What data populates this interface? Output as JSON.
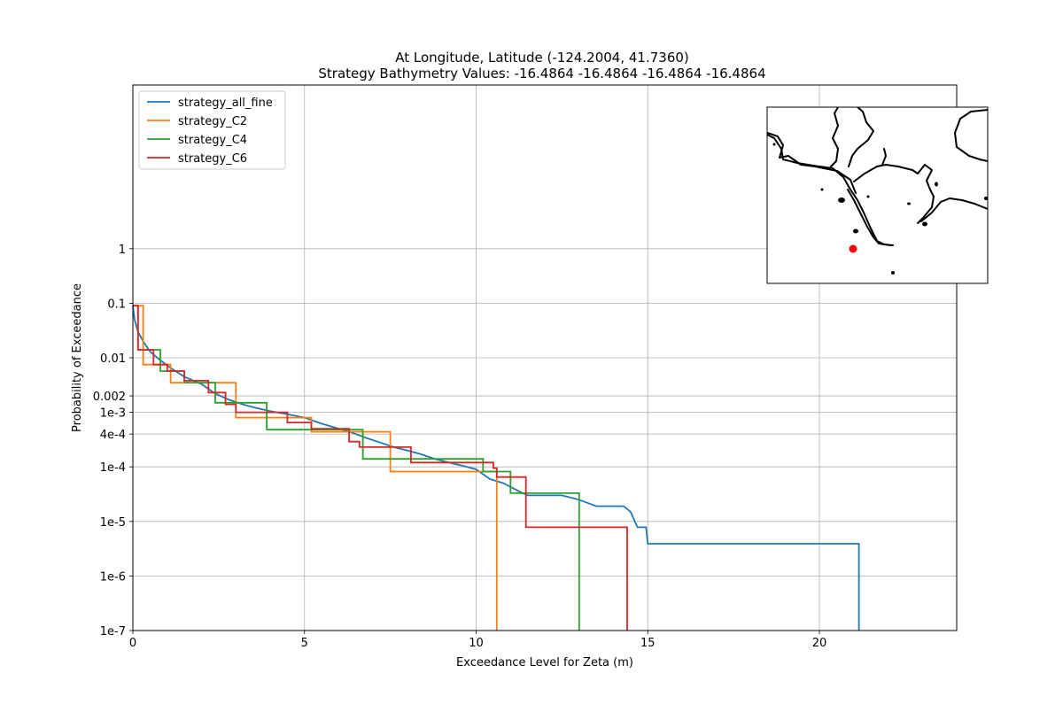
{
  "chart_data": {
    "type": "line",
    "title": "At Longitude, Latitude (-124.2004,  41.7360)",
    "subtitle": "Strategy Bathymetry Values:  -16.4864  -16.4864  -16.4864  -16.4864",
    "xlabel": "Exceedance Level for Zeta (m)",
    "ylabel": "Probability of Exceedance",
    "xlim": [
      0,
      24
    ],
    "ylim": [
      1e-07,
      1000
    ],
    "yscale": "log",
    "grid": true,
    "legend_position": "upper-left",
    "x_ticks": [
      {
        "value": 0,
        "label": "0"
      },
      {
        "value": 5,
        "label": "5"
      },
      {
        "value": 10,
        "label": "10"
      },
      {
        "value": 15,
        "label": "15"
      },
      {
        "value": 20,
        "label": "20"
      }
    ],
    "y_ticks": [
      {
        "value": 1,
        "label": "1"
      },
      {
        "value": 0.1,
        "label": "0.1"
      },
      {
        "value": 0.01,
        "label": "0.01"
      },
      {
        "value": 0.002,
        "label": "0.002"
      },
      {
        "value": 0.001,
        "label": "1e-3"
      },
      {
        "value": 0.0004,
        "label": "4e-4"
      },
      {
        "value": 0.0001,
        "label": "1e-4"
      },
      {
        "value": 1e-05,
        "label": "1e-5"
      },
      {
        "value": 1e-06,
        "label": "1e-6"
      },
      {
        "value": 1e-07,
        "label": "1e-7"
      }
    ],
    "series": [
      {
        "name": "strategy_all_fine",
        "color": "#1f77b4",
        "step": false,
        "points": [
          [
            0,
            0.09
          ],
          [
            0.05,
            0.05
          ],
          [
            0.15,
            0.03
          ],
          [
            0.3,
            0.02
          ],
          [
            0.5,
            0.013
          ],
          [
            0.8,
            0.009
          ],
          [
            1.1,
            0.0065
          ],
          [
            1.5,
            0.0045
          ],
          [
            2.0,
            0.0033
          ],
          [
            2.4,
            0.0022
          ],
          [
            2.8,
            0.0017
          ],
          [
            3.2,
            0.0014
          ],
          [
            3.6,
            0.0012
          ],
          [
            4.0,
            0.00105
          ],
          [
            4.5,
            0.00092
          ],
          [
            5.0,
            0.0008
          ],
          [
            5.5,
            0.00062
          ],
          [
            6.0,
            0.0005
          ],
          [
            6.4,
            0.00042
          ],
          [
            6.8,
            0.00034
          ],
          [
            7.2,
            0.00028
          ],
          [
            7.6,
            0.00023
          ],
          [
            8.0,
            0.0002
          ],
          [
            8.4,
            0.00017
          ],
          [
            8.8,
            0.00014
          ],
          [
            9.2,
            0.00012
          ],
          [
            9.6,
            0.000105
          ],
          [
            10.0,
            9e-05
          ],
          [
            10.4,
            6e-05
          ],
          [
            10.8,
            5e-05
          ],
          [
            11.2,
            3.7e-05
          ],
          [
            11.5,
            3e-05
          ],
          [
            12.5,
            3e-05
          ],
          [
            13.0,
            2.5e-05
          ],
          [
            13.5,
            1.9e-05
          ],
          [
            14.3,
            1.9e-05
          ],
          [
            14.5,
            1.5e-05
          ],
          [
            14.7,
            7.8e-06
          ],
          [
            14.95,
            7.8e-06
          ],
          [
            15.0,
            3.9e-06
          ],
          [
            21.15,
            3.9e-06
          ],
          [
            21.15,
            1e-07
          ]
        ]
      },
      {
        "name": "strategy_C2",
        "color": "#ff7f0e",
        "step": true,
        "points": [
          [
            0,
            0.09
          ],
          [
            0.3,
            0.09
          ],
          [
            0.3,
            0.0075
          ],
          [
            1.1,
            0.0075
          ],
          [
            1.1,
            0.0035
          ],
          [
            3.0,
            0.0035
          ],
          [
            3.0,
            0.0008
          ],
          [
            5.2,
            0.0008
          ],
          [
            5.2,
            0.00044
          ],
          [
            7.5,
            0.00044
          ],
          [
            7.5,
            8.2e-05
          ],
          [
            10.6,
            8.2e-05
          ],
          [
            10.6,
            1e-07
          ]
        ]
      },
      {
        "name": "strategy_C4",
        "color": "#2ca02c",
        "step": true,
        "points": [
          [
            0,
            0.09
          ],
          [
            0.15,
            0.09
          ],
          [
            0.15,
            0.014
          ],
          [
            0.8,
            0.014
          ],
          [
            0.8,
            0.0057
          ],
          [
            1.5,
            0.0057
          ],
          [
            1.5,
            0.0035
          ],
          [
            2.4,
            0.0035
          ],
          [
            2.4,
            0.0015
          ],
          [
            3.9,
            0.0015
          ],
          [
            3.9,
            0.00048
          ],
          [
            6.7,
            0.00048
          ],
          [
            6.7,
            0.00014
          ],
          [
            10.2,
            0.00014
          ],
          [
            10.2,
            8.2e-05
          ],
          [
            11.0,
            8.2e-05
          ],
          [
            11.0,
            3.3e-05
          ],
          [
            13.0,
            3.3e-05
          ],
          [
            13.0,
            1e-07
          ]
        ]
      },
      {
        "name": "strategy_C6",
        "color": "#d62728",
        "step": true,
        "points": [
          [
            0,
            0.09
          ],
          [
            0.15,
            0.09
          ],
          [
            0.15,
            0.014
          ],
          [
            0.6,
            0.014
          ],
          [
            0.6,
            0.0075
          ],
          [
            1.0,
            0.0075
          ],
          [
            1.0,
            0.0057
          ],
          [
            1.5,
            0.0057
          ],
          [
            1.5,
            0.0038
          ],
          [
            2.2,
            0.0038
          ],
          [
            2.2,
            0.0023
          ],
          [
            2.7,
            0.0023
          ],
          [
            2.7,
            0.0014
          ],
          [
            3.0,
            0.0014
          ],
          [
            3.0,
            0.001
          ],
          [
            4.5,
            0.001
          ],
          [
            4.5,
            0.00065
          ],
          [
            5.2,
            0.00065
          ],
          [
            5.2,
            0.0005
          ],
          [
            6.3,
            0.0005
          ],
          [
            6.3,
            0.00029
          ],
          [
            6.6,
            0.00029
          ],
          [
            6.6,
            0.00023
          ],
          [
            8.1,
            0.00023
          ],
          [
            8.1,
            0.00012
          ],
          [
            10.5,
            0.00012
          ],
          [
            10.5,
            9.5e-05
          ],
          [
            10.6,
            9.5e-05
          ],
          [
            10.6,
            6.5e-05
          ],
          [
            11.45,
            6.5e-05
          ],
          [
            11.45,
            7.8e-06
          ],
          [
            14.4,
            7.8e-06
          ],
          [
            14.4,
            1e-07
          ]
        ]
      }
    ]
  },
  "inset_map": {
    "marker_color": "#ff0000"
  }
}
